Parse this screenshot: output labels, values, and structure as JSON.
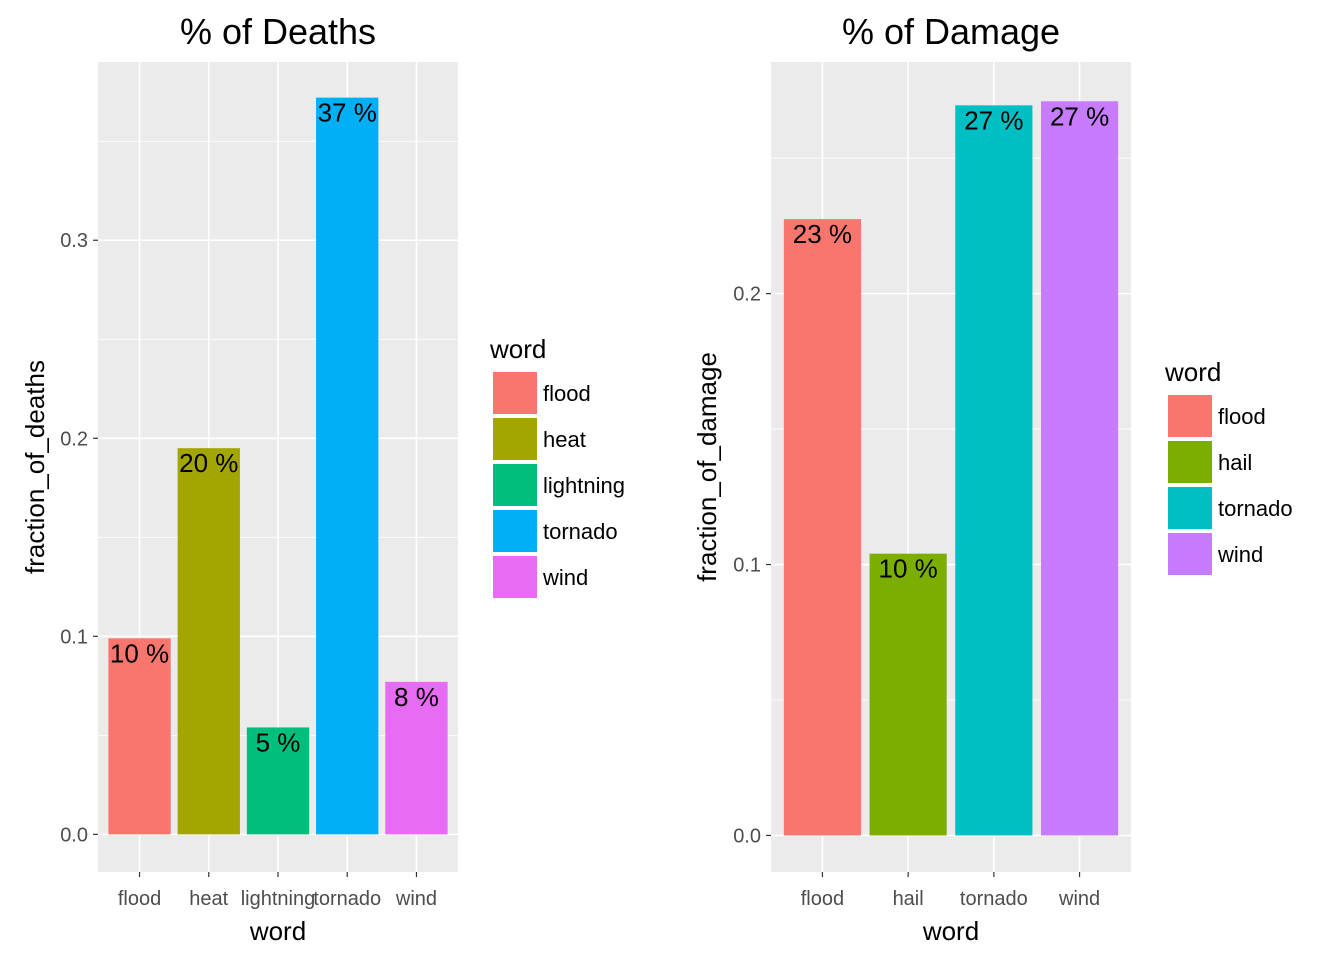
{
  "chart_data": [
    {
      "type": "bar",
      "title": "% of Deaths",
      "xlabel": "word",
      "ylabel": "fraction_of_deaths",
      "categories": [
        "flood",
        "heat",
        "lightning",
        "tornado",
        "wind"
      ],
      "values": [
        0.099,
        0.195,
        0.054,
        0.372,
        0.077
      ],
      "bar_labels": [
        "10 %",
        "20 %",
        "5 %",
        "37 %",
        "8 %"
      ],
      "colors": [
        "#F8766D",
        "#A3A500",
        "#00BF7D",
        "#00B0F6",
        "#E76BF3"
      ],
      "yticks": [
        0.0,
        0.1,
        0.2,
        0.3
      ],
      "ytick_labels": [
        "0.0",
        "0.1",
        "0.2",
        "0.3"
      ],
      "ylim": [
        -0.019,
        0.39
      ],
      "grid": true,
      "legend": {
        "title": "word",
        "position": "right",
        "entries": [
          "flood",
          "heat",
          "lightning",
          "tornado",
          "wind"
        ]
      }
    },
    {
      "type": "bar",
      "title": "% of Damage",
      "xlabel": "word",
      "ylabel": "fraction_of_damage",
      "categories": [
        "flood",
        "hail",
        "tornado",
        "wind"
      ],
      "values": [
        0.2275,
        0.104,
        0.2695,
        0.271
      ],
      "bar_labels": [
        "23 %",
        "10 %",
        "27 %",
        "27 %"
      ],
      "colors": [
        "#F8766D",
        "#7CAE00",
        "#00BFC4",
        "#C77CFF"
      ],
      "yticks": [
        0.0,
        0.1,
        0.2
      ],
      "ytick_labels": [
        "0.0",
        "0.1",
        "0.2"
      ],
      "ylim": [
        -0.0135,
        0.2855
      ],
      "grid": true,
      "legend": {
        "title": "word",
        "position": "right",
        "entries": [
          "flood",
          "hail",
          "tornado",
          "wind"
        ]
      }
    }
  ]
}
